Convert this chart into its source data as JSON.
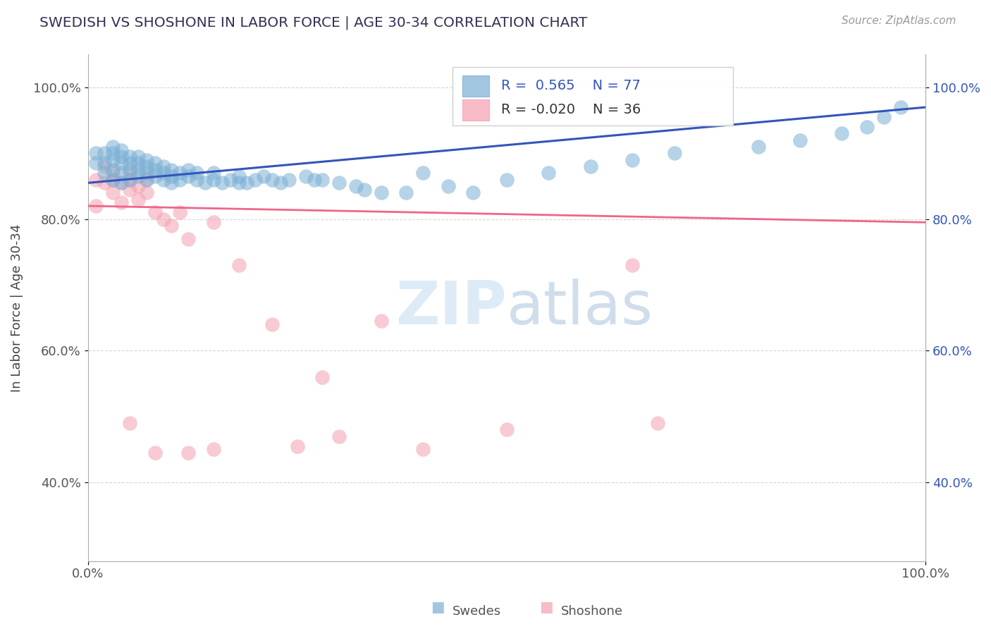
{
  "title": "SWEDISH VS SHOSHONE IN LABOR FORCE | AGE 30-34 CORRELATION CHART",
  "source_text": "Source: ZipAtlas.com",
  "ylabel": "In Labor Force | Age 30-34",
  "xlim": [
    0.0,
    1.0
  ],
  "ylim": [
    0.28,
    1.05
  ],
  "x_tick_labels": [
    "0.0%",
    "100.0%"
  ],
  "y_tick_labels": [
    "40.0%",
    "60.0%",
    "80.0%",
    "100.0%"
  ],
  "y_tick_values": [
    0.4,
    0.6,
    0.8,
    1.0
  ],
  "legend_blue_label": "Swedes",
  "legend_pink_label": "Shoshone",
  "R_blue": 0.565,
  "N_blue": 77,
  "R_pink": -0.02,
  "N_pink": 36,
  "blue_color": "#7BAFD4",
  "pink_color": "#F4A0B0",
  "trend_blue_color": "#3355BB",
  "trend_pink_color": "#EE6688",
  "background_color": "#FFFFFF",
  "grid_color": "#BBBBBB",
  "title_color": "#333355",
  "swedes_x": [
    0.01,
    0.01,
    0.02,
    0.02,
    0.02,
    0.03,
    0.03,
    0.03,
    0.03,
    0.03,
    0.04,
    0.04,
    0.04,
    0.04,
    0.04,
    0.05,
    0.05,
    0.05,
    0.05,
    0.06,
    0.06,
    0.06,
    0.06,
    0.07,
    0.07,
    0.07,
    0.07,
    0.08,
    0.08,
    0.08,
    0.09,
    0.09,
    0.09,
    0.1,
    0.1,
    0.1,
    0.11,
    0.11,
    0.12,
    0.12,
    0.13,
    0.13,
    0.14,
    0.15,
    0.15,
    0.16,
    0.17,
    0.18,
    0.18,
    0.19,
    0.2,
    0.21,
    0.22,
    0.23,
    0.24,
    0.26,
    0.27,
    0.28,
    0.3,
    0.32,
    0.33,
    0.35,
    0.38,
    0.4,
    0.43,
    0.46,
    0.5,
    0.55,
    0.6,
    0.65,
    0.7,
    0.8,
    0.85,
    0.9,
    0.93,
    0.95,
    0.97
  ],
  "swedes_y": [
    0.885,
    0.9,
    0.87,
    0.885,
    0.9,
    0.86,
    0.875,
    0.89,
    0.9,
    0.91,
    0.855,
    0.87,
    0.885,
    0.895,
    0.905,
    0.86,
    0.875,
    0.885,
    0.895,
    0.865,
    0.875,
    0.885,
    0.895,
    0.86,
    0.87,
    0.88,
    0.89,
    0.865,
    0.875,
    0.885,
    0.86,
    0.87,
    0.88,
    0.855,
    0.865,
    0.875,
    0.86,
    0.87,
    0.865,
    0.875,
    0.86,
    0.87,
    0.855,
    0.86,
    0.87,
    0.855,
    0.86,
    0.855,
    0.865,
    0.855,
    0.86,
    0.865,
    0.86,
    0.855,
    0.86,
    0.865,
    0.86,
    0.86,
    0.855,
    0.85,
    0.845,
    0.84,
    0.84,
    0.87,
    0.85,
    0.84,
    0.86,
    0.87,
    0.88,
    0.89,
    0.9,
    0.91,
    0.92,
    0.93,
    0.94,
    0.955,
    0.97
  ],
  "shoshone_x": [
    0.01,
    0.01,
    0.02,
    0.02,
    0.03,
    0.03,
    0.03,
    0.04,
    0.04,
    0.05,
    0.05,
    0.05,
    0.06,
    0.06,
    0.07,
    0.07,
    0.08,
    0.09,
    0.1,
    0.11,
    0.12,
    0.15,
    0.18,
    0.22,
    0.28,
    0.35,
    0.4,
    0.5,
    0.65,
    0.68,
    0.05,
    0.08,
    0.12,
    0.15,
    0.25,
    0.3
  ],
  "shoshone_y": [
    0.86,
    0.82,
    0.855,
    0.88,
    0.84,
    0.86,
    0.87,
    0.855,
    0.825,
    0.86,
    0.845,
    0.87,
    0.85,
    0.83,
    0.86,
    0.84,
    0.81,
    0.8,
    0.79,
    0.81,
    0.77,
    0.795,
    0.73,
    0.64,
    0.56,
    0.645,
    0.45,
    0.48,
    0.73,
    0.49,
    0.49,
    0.445,
    0.445,
    0.45,
    0.455,
    0.47
  ],
  "trend_blue_x0": 0.0,
  "trend_blue_y0": 0.855,
  "trend_blue_x1": 1.0,
  "trend_blue_y1": 0.97,
  "trend_pink_x0": 0.0,
  "trend_pink_y0": 0.82,
  "trend_pink_x1": 1.0,
  "trend_pink_y1": 0.795
}
